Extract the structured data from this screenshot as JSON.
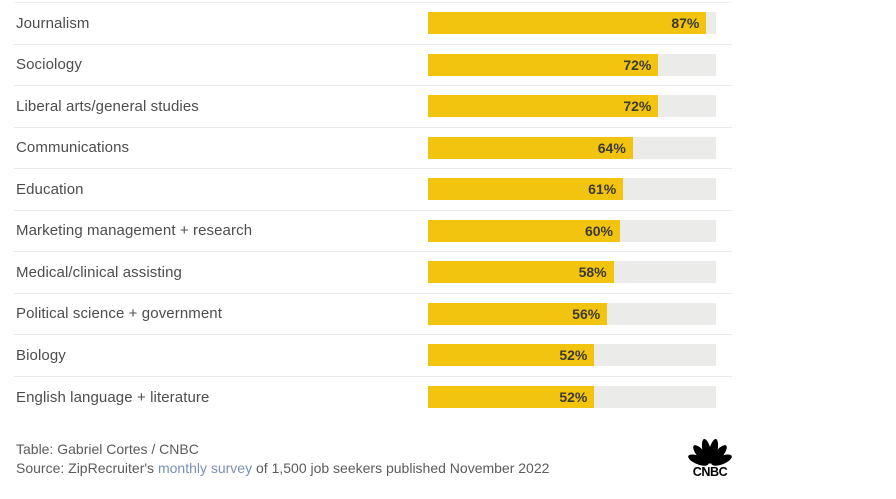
{
  "chart_data": {
    "type": "bar",
    "orientation": "horizontal",
    "categories": [
      "Journalism",
      "Sociology",
      "Liberal arts/general studies",
      "Communications",
      "Education",
      "Marketing management + research",
      "Medical/clinical assisting",
      "Political science + government",
      "Biology",
      "English language + literature"
    ],
    "values": [
      87,
      72,
      72,
      64,
      61,
      60,
      58,
      56,
      52,
      52
    ],
    "value_unit": "%",
    "value_labels": [
      "87%",
      "72%",
      "72%",
      "64%",
      "61%",
      "60%",
      "58%",
      "56%",
      "52%",
      "52%"
    ],
    "title": "",
    "xlabel": "",
    "ylabel": "",
    "xlim": [
      0,
      90
    ],
    "grid": false,
    "legend": false
  },
  "colors": {
    "bar": "#F2C40F",
    "track": "#EBEBE9",
    "category_label": "#4d4d4d",
    "value_label": "#3b3a33",
    "divider": "#e9e9e7",
    "footer_text": "#5b5b5b",
    "link": "#7b8fb3",
    "logo": "#000000"
  },
  "footer": {
    "credit": "Table: Gabriel Cortes / CNBC",
    "source_prefix": "Source: ZipRecruiter's ",
    "source_link": "monthly survey",
    "source_suffix": " of 1,500 job seekers published November 2022",
    "logo_text": "CNBC"
  }
}
